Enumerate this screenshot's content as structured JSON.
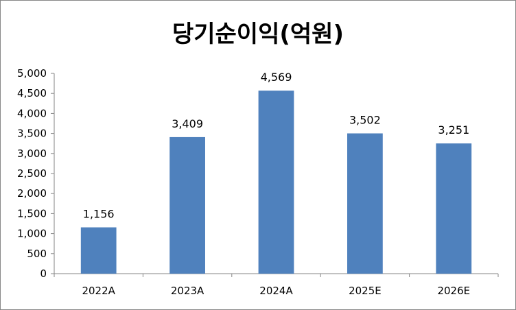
{
  "chart_data": {
    "type": "bar",
    "title": "당기순이익(억원)",
    "categories": [
      "2022A",
      "2023A",
      "2024A",
      "2025E",
      "2026E"
    ],
    "values": [
      1156,
      3409,
      4569,
      3502,
      3251
    ],
    "value_labels": [
      "1,156",
      "3,409",
      "4,569",
      "3,502",
      "3,251"
    ],
    "ylim": [
      0,
      5000
    ],
    "y_ticks": [
      0,
      500,
      1000,
      1500,
      2000,
      2500,
      3000,
      3500,
      4000,
      4500,
      5000
    ],
    "y_tick_labels": [
      "0",
      "500",
      "1,000",
      "1,500",
      "2,000",
      "2,500",
      "3,000",
      "3,500",
      "4,000",
      "4,500",
      "5,000"
    ],
    "grid": false,
    "legend": "none",
    "bar_color": "#4F81BD"
  }
}
